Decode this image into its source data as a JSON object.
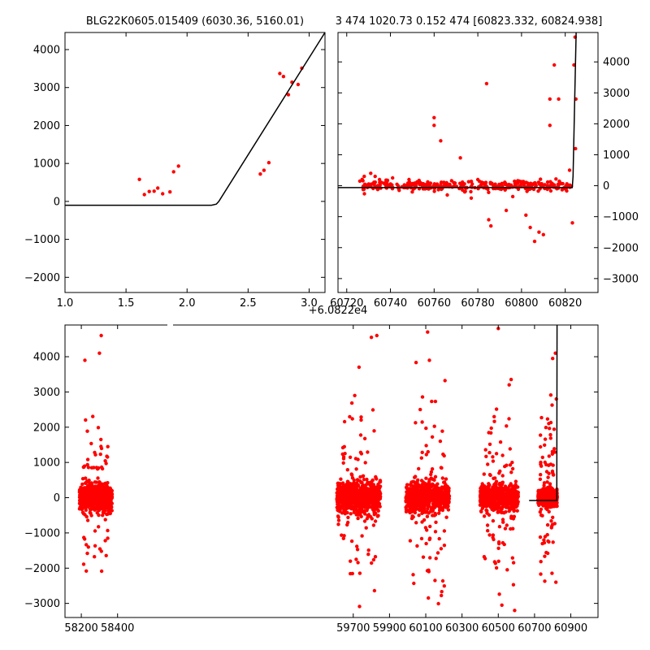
{
  "figure": {
    "background": "#ffffff",
    "point_color": "#ff0000",
    "line_color": "#000000"
  },
  "chart_data": [
    {
      "type": "scatter",
      "panel": "top-left",
      "title": "BLG22K0605.015409 (6030.36, 5160.01)",
      "xlim": [
        1.0,
        3.13
      ],
      "ylim": [
        -2400,
        4450
      ],
      "x_ticks": [
        1.0,
        1.5,
        2.0,
        2.5,
        3.0
      ],
      "x_tick_labels": [
        "1.0",
        "1.5",
        "2.0",
        "2.5",
        "3.0"
      ],
      "y_ticks": [
        -2000,
        -1000,
        0,
        1000,
        2000,
        3000,
        4000
      ],
      "y_tick_labels": [
        "−2000",
        "−1000",
        "0",
        "1000",
        "2000",
        "3000",
        "4000"
      ],
      "y_axis_side": "left",
      "grid": false,
      "series": [
        {
          "kind": "points",
          "color": "#ff0000",
          "x": [
            1.61,
            1.65,
            1.69,
            1.73,
            1.76,
            1.8,
            1.86,
            1.89,
            1.93,
            2.6,
            2.63,
            2.67,
            2.76,
            2.79,
            2.83,
            2.86,
            2.91,
            2.94
          ],
          "y": [
            580,
            180,
            260,
            270,
            350,
            200,
            250,
            780,
            930,
            720,
            820,
            1020,
            3370,
            3290,
            2810,
            3140,
            3080,
            3510
          ]
        },
        {
          "kind": "line",
          "color": "#000000",
          "x": [
            1.0,
            2.2,
            2.24,
            2.26,
            3.13
          ],
          "y": [
            -100,
            -100,
            -70,
            0,
            4450
          ]
        }
      ]
    },
    {
      "type": "scatter",
      "panel": "top-right",
      "title": "3 474 1020.73 0.152 474 [60823.332, 60824.938]",
      "x_offset_label": "+6.0822e4",
      "xlim": [
        60716,
        60835
      ],
      "ylim": [
        -3450,
        4950
      ],
      "x_ticks": [
        60720,
        60740,
        60760,
        60780,
        60800,
        60820
      ],
      "x_tick_labels": [
        "60720",
        "60740",
        "60760",
        "60780",
        "60800",
        "60820"
      ],
      "y_ticks": [
        -3000,
        -2000,
        -1000,
        0,
        1000,
        2000,
        3000,
        4000
      ],
      "y_tick_labels": [
        "−3000",
        "−2000",
        "−1000",
        "0",
        "1000",
        "2000",
        "3000",
        "4000"
      ],
      "y_axis_side": "right",
      "grid": false,
      "series": [
        {
          "kind": "points",
          "color": "#ff0000",
          "x": [
            60726,
            60728,
            60731,
            60733,
            60735,
            60738,
            60741,
            60744,
            60747,
            60750,
            60752,
            60755,
            60758,
            60760,
            60760,
            60763,
            60766,
            60769,
            60772,
            60774,
            60777,
            60780,
            60784,
            60785,
            60786,
            60788,
            60790,
            60793,
            60796,
            60799,
            60802,
            60804,
            60806,
            60808,
            60810,
            60813,
            60813,
            60815,
            60817,
            60820,
            60822,
            60823.3,
            60824.0,
            60824.5,
            60824.7,
            60824.9
          ],
          "y": [
            150,
            300,
            400,
            300,
            200,
            180,
            250,
            -150,
            -50,
            -200,
            100,
            -100,
            50,
            2200,
            1950,
            1450,
            -300,
            100,
            900,
            -200,
            -400,
            200,
            3300,
            -1100,
            -1300,
            50,
            -100,
            -800,
            -350,
            150,
            -950,
            -1350,
            -1800,
            -1500,
            -1580,
            2800,
            1950,
            3900,
            2800,
            -100,
            500,
            -1200,
            3900,
            4800,
            1200,
            2800
          ]
        },
        {
          "kind": "band",
          "color": "#ff0000",
          "x_range": [
            60727,
            60823
          ],
          "y_spread": 300
        },
        {
          "kind": "line",
          "color": "#000000",
          "x": [
            60716,
            60823.2,
            60823.6,
            60824.4,
            60825.0
          ],
          "y": [
            -60,
            -60,
            300,
            3000,
            4950
          ]
        }
      ]
    },
    {
      "type": "scatter",
      "panel": "bottom",
      "xlim": [
        58110,
        61050
      ],
      "ylim": [
        -3400,
        4900
      ],
      "broken_x_axis": true,
      "x_ticks": [
        58200,
        58400,
        59700,
        59900,
        60100,
        60300,
        60500,
        60700,
        60900
      ],
      "x_tick_labels": [
        "58200",
        "58400",
        "59700",
        "59900",
        "60100",
        "60300",
        "60500",
        "60700",
        "60900"
      ],
      "y_ticks": [
        -3000,
        -2000,
        -1000,
        0,
        1000,
        2000,
        3000,
        4000
      ],
      "y_tick_labels": [
        "−3000",
        "−2000",
        "−1000",
        "0",
        "1000",
        "2000",
        "3000",
        "4000"
      ],
      "y_axis_side": "left",
      "grid": false,
      "series": [
        {
          "kind": "clusters",
          "color": "#ff0000",
          "clusters": [
            {
              "x_range": [
                58190,
                58370
              ],
              "core_spread": 500,
              "outlier_spread": 2300
            },
            {
              "x_range": [
                59610,
                59850
              ],
              "core_spread": 650,
              "outlier_spread": 3300
            },
            {
              "x_range": [
                59990,
                60230
              ],
              "core_spread": 600,
              "outlier_spread": 3500
            },
            {
              "x_range": [
                60400,
                60610
              ],
              "core_spread": 500,
              "outlier_spread": 3000
            },
            {
              "x_range": [
                60720,
                60825
              ],
              "core_spread": 300,
              "outlier_spread": 2500
            }
          ],
          "extra_points": {
            "x": [
              58220,
              58300,
              58310,
              59800,
              59830,
              60110,
              60120,
              60500,
              60520,
              60560,
              60590,
              60800,
              60815,
              60818,
              60820
            ],
            "y": [
              3900,
              4100,
              4600,
              4550,
              4600,
              4700,
              3900,
              4800,
              -3050,
              3200,
              -3200,
              3950,
              4100,
              -2400,
              2800
            ]
          }
        },
        {
          "kind": "line",
          "color": "#000000",
          "x": [
            60670,
            60823,
            60823,
            60824
          ],
          "y": [
            -80,
            -80,
            300,
            4900
          ]
        }
      ]
    }
  ]
}
